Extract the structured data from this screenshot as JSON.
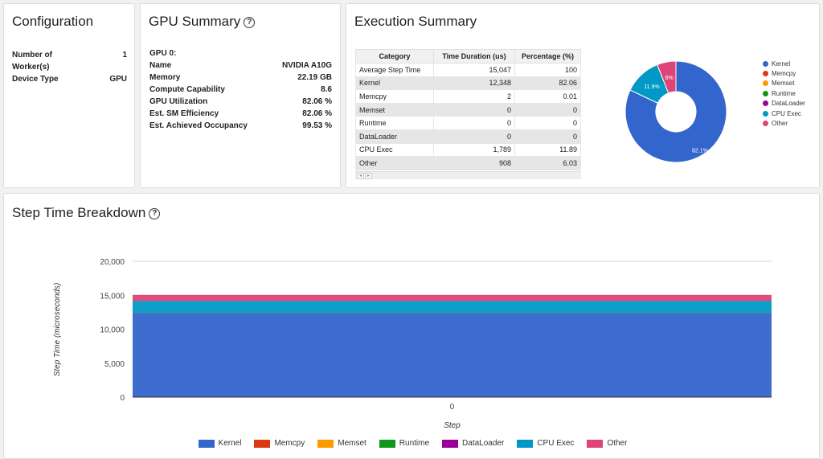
{
  "configuration": {
    "title": "Configuration",
    "rows": [
      {
        "label": "Number of Worker(s)",
        "value": "1"
      },
      {
        "label": "Device Type",
        "value": "GPU"
      }
    ]
  },
  "gpu_summary": {
    "title": "GPU Summary",
    "help_icon": "?",
    "header": "GPU 0:",
    "rows": [
      {
        "label": "Name",
        "value": "NVIDIA A10G"
      },
      {
        "label": "Memory",
        "value": "22.19 GB"
      },
      {
        "label": "Compute Capability",
        "value": "8.6"
      },
      {
        "label": "GPU Utilization",
        "value": "82.06 %"
      },
      {
        "label": "Est. SM Efficiency",
        "value": "82.06 %"
      },
      {
        "label": "Est. Achieved Occupancy",
        "value": "99.53 %"
      }
    ]
  },
  "execution_summary": {
    "title": "Execution Summary",
    "columns": [
      "Category",
      "Time Duration (us)",
      "Percentage (%)"
    ],
    "rows": [
      [
        "Average Step Time",
        "15,047",
        "100"
      ],
      [
        "Kernel",
        "12,348",
        "82.06"
      ],
      [
        "Memcpy",
        "2",
        "0.01"
      ],
      [
        "Memset",
        "0",
        "0"
      ],
      [
        "Runtime",
        "0",
        "0"
      ],
      [
        "DataLoader",
        "0",
        "0"
      ],
      [
        "CPU Exec",
        "1,789",
        "11.89"
      ],
      [
        "Other",
        "908",
        "6.03"
      ]
    ],
    "scroll_left": "◂",
    "scroll_right": "▸"
  },
  "colors": {
    "Kernel": "#3366cc",
    "Memcpy": "#dc3912",
    "Memset": "#ff9900",
    "Runtime": "#109618",
    "DataLoader": "#990099",
    "CPU Exec": "#0099c6",
    "Other": "#dd4477"
  },
  "step_breakdown": {
    "title": "Step Time Breakdown",
    "help_icon": "?"
  },
  "chart_data": [
    {
      "type": "pie",
      "donut": true,
      "labels": [
        "Kernel",
        "Memcpy",
        "Memset",
        "Runtime",
        "DataLoader",
        "CPU Exec",
        "Other"
      ],
      "values": [
        12348,
        2,
        0,
        0,
        0,
        1789,
        908
      ],
      "slice_labels": [
        "82.1%",
        "",
        "",
        "",
        "",
        "11.9%",
        "6%"
      ],
      "legend_position": "right"
    },
    {
      "type": "area",
      "stacked": true,
      "categories": [
        "0"
      ],
      "xlabel": "Step",
      "ylabel": "Step Time (microseconds)",
      "ylim": [
        0,
        20000
      ],
      "yticks": [
        "0",
        "5,000",
        "10,000",
        "15,000",
        "20,000"
      ],
      "grid": true,
      "legend_position": "bottom",
      "series": [
        {
          "name": "Kernel",
          "values": [
            12348
          ]
        },
        {
          "name": "Memcpy",
          "values": [
            2
          ]
        },
        {
          "name": "Memset",
          "values": [
            0
          ]
        },
        {
          "name": "Runtime",
          "values": [
            0
          ]
        },
        {
          "name": "DataLoader",
          "values": [
            0
          ]
        },
        {
          "name": "CPU Exec",
          "values": [
            1789
          ]
        },
        {
          "name": "Other",
          "values": [
            908
          ]
        }
      ]
    }
  ]
}
